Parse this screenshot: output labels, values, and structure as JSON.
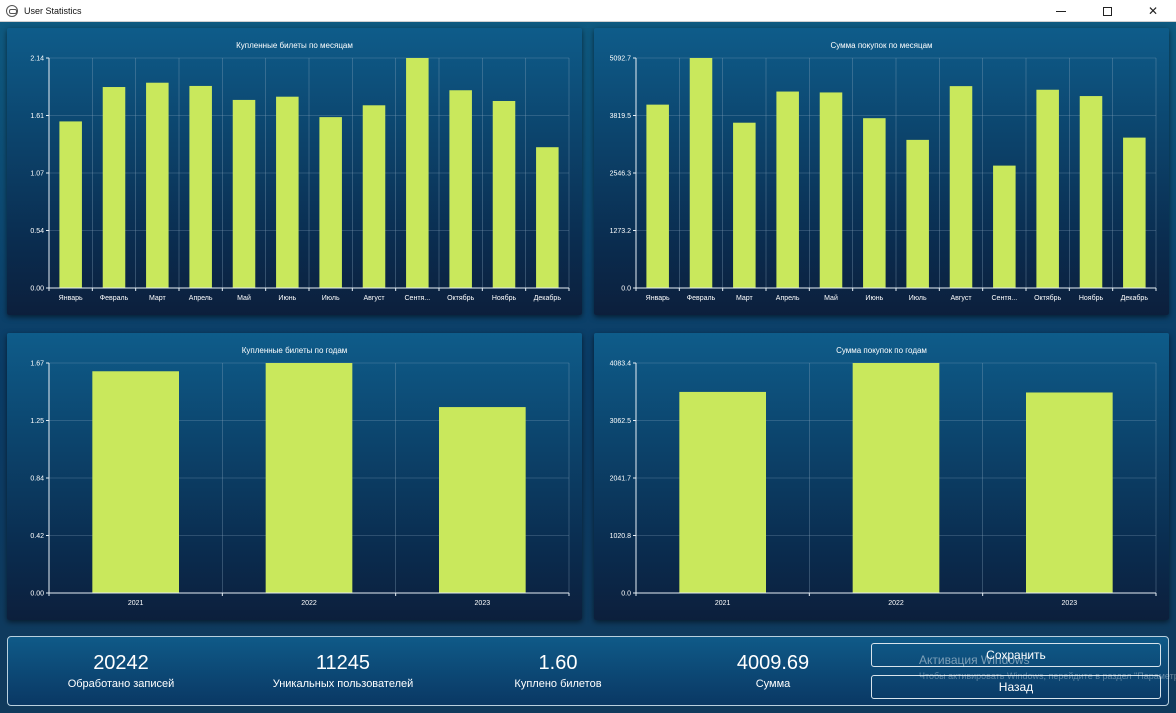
{
  "window": {
    "title": "User Statistics",
    "controls": {
      "minimize": "minimize",
      "maximize": "maximize",
      "close": "close"
    }
  },
  "colors": {
    "bar": "#c9e85c",
    "background": "#0c4a6e"
  },
  "chart_data": [
    {
      "id": "tickets-by-month",
      "type": "bar",
      "title": "Купленные билеты по месяцам",
      "categories": [
        "Январь",
        "Февраль",
        "Март",
        "Апрель",
        "Май",
        "Июнь",
        "Июль",
        "Август",
        "Сентя...",
        "Октябрь",
        "Ноябрь",
        "Декабрь"
      ],
      "values": [
        1.55,
        1.87,
        1.91,
        1.88,
        1.75,
        1.78,
        1.59,
        1.7,
        2.14,
        1.84,
        1.74,
        1.31
      ],
      "yticks": [
        "0.00",
        "0.54",
        "1.07",
        "1.61",
        "2.14"
      ],
      "ylim": [
        0,
        2.14
      ],
      "grid": true
    },
    {
      "id": "sum-by-month",
      "type": "bar",
      "title": "Сумма покупок по месяцам",
      "categories": [
        "Январь",
        "Февраль",
        "Март",
        "Апрель",
        "Май",
        "Июнь",
        "Июль",
        "Август",
        "Сентя...",
        "Октябрь",
        "Ноябрь",
        "Декабрь"
      ],
      "values": [
        4060,
        5092.7,
        3660,
        4350,
        4330,
        3760,
        3280,
        4470,
        2710,
        4390,
        4250,
        3330
      ],
      "yticks": [
        "0.0",
        "1273.2",
        "2546.3",
        "3819.5",
        "5092.7"
      ],
      "ylim": [
        0,
        5092.7
      ],
      "grid": true
    },
    {
      "id": "tickets-by-year",
      "type": "bar",
      "title": "Купленные билеты по годам",
      "categories": [
        "2021",
        "2022",
        "2023"
      ],
      "values": [
        1.61,
        1.67,
        1.35
      ],
      "yticks": [
        "0.00",
        "0.42",
        "0.84",
        "1.25",
        "1.67"
      ],
      "ylim": [
        0,
        1.67
      ],
      "grid": true
    },
    {
      "id": "sum-by-year",
      "type": "bar",
      "title": "Сумма покупок по годам",
      "categories": [
        "2021",
        "2022",
        "2023"
      ],
      "values": [
        3570,
        4083.4,
        3560
      ],
      "yticks": [
        "0.0",
        "1020.8",
        "2041.7",
        "3062.5",
        "4083.4"
      ],
      "ylim": [
        0,
        4083.4
      ],
      "grid": true
    }
  ],
  "stats": {
    "records": {
      "value": "20242",
      "label": "Обработано записей"
    },
    "users": {
      "value": "11245",
      "label": "Уникальных пользователей"
    },
    "tickets": {
      "value": "1.60",
      "label": "Куплено билетов"
    },
    "sum": {
      "value": "4009.69",
      "label": "Сумма"
    }
  },
  "buttons": {
    "save": "Сохранить",
    "back": "Назад"
  },
  "watermark": {
    "title": "Активация Windows",
    "subtitle": "Чтобы активировать Windows, перейдите в раздел \"Параметры\"."
  }
}
